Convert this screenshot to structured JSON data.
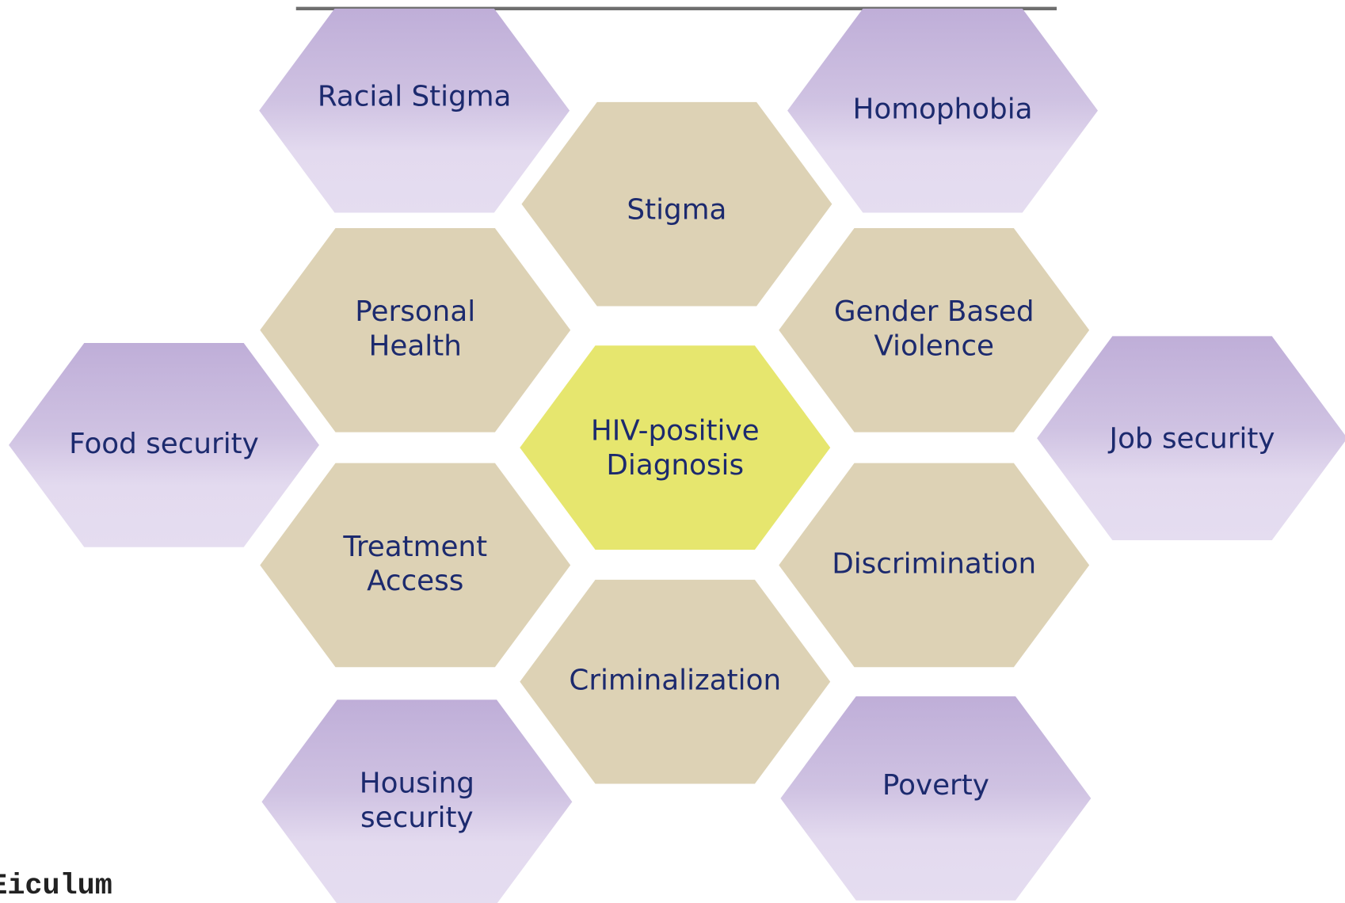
{
  "nodes": [
    {
      "lines": [
        "Racial Stigma"
      ]
    },
    {
      "lines": [
        "Homophobia"
      ]
    },
    {
      "lines": [
        "Stigma"
      ]
    },
    {
      "lines": [
        "Personal",
        "Health"
      ]
    },
    {
      "lines": [
        "Gender Based",
        "Violence"
      ]
    },
    {
      "lines": [
        "Food security"
      ]
    },
    {
      "lines": [
        "HIV-positive",
        "Diagnosis"
      ]
    },
    {
      "lines": [
        "Job security"
      ]
    },
    {
      "lines": [
        "Treatment",
        "Access"
      ]
    },
    {
      "lines": [
        "Discrimination"
      ]
    },
    {
      "lines": [
        "Criminalization"
      ]
    },
    {
      "lines": [
        "Housing",
        "security"
      ]
    },
    {
      "lines": [
        "Poverty"
      ]
    }
  ],
  "watermark": "Eiculum"
}
